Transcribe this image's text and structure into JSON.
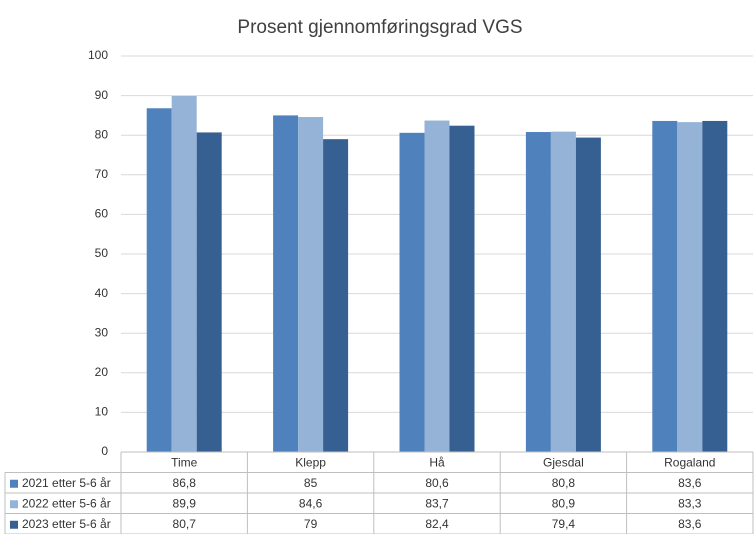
{
  "chart_data": {
    "type": "bar",
    "title": "Prosent gjennomføringsgrad VGS",
    "categories": [
      "Time",
      "Klepp",
      "Hå",
      "Gjesdal",
      "Rogaland"
    ],
    "series": [
      {
        "name": "2021 etter 5-6 år",
        "color": "#4f81bd",
        "values": [
          86.8,
          85,
          80.6,
          80.8,
          83.6
        ],
        "value_labels": [
          "86,8",
          "85",
          "80,6",
          "80,8",
          "83,6"
        ]
      },
      {
        "name": "2022 etter 5-6 år",
        "color": "#95b3d7",
        "values": [
          89.9,
          84.6,
          83.7,
          80.9,
          83.3
        ],
        "value_labels": [
          "89,9",
          "84,6",
          "83,7",
          "80,9",
          "83,3"
        ]
      },
      {
        "name": "2023 etter 5-6 år",
        "color": "#366092",
        "values": [
          80.7,
          79,
          82.4,
          79.4,
          83.6
        ],
        "value_labels": [
          "80,7",
          "79",
          "82,4",
          "79,4",
          "83,6"
        ]
      }
    ],
    "ylim": [
      0,
      100
    ],
    "yticks": [
      0,
      10,
      20,
      30,
      40,
      50,
      60,
      70,
      80,
      90,
      100
    ],
    "grid": true
  }
}
